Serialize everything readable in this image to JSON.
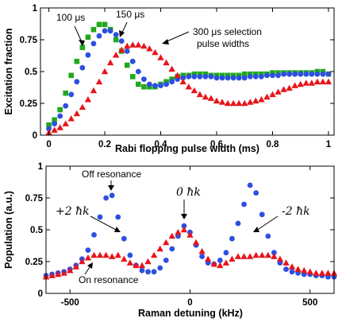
{
  "chart_data": [
    {
      "type": "scatter",
      "xlabel": "Rabi flopping pulse width (ms)",
      "ylabel": "Excitation fraction",
      "xlim": [
        -0.03,
        1.02
      ],
      "ylim": [
        0,
        1
      ],
      "xticks": [
        "0",
        "0.2",
        "0.4",
        "0.6",
        "0.8",
        "1"
      ],
      "yticks": [
        "0",
        "0.25",
        "0.5",
        "0.75",
        "1"
      ],
      "xtick_values": [
        0,
        0.2,
        0.4,
        0.6,
        0.8,
        1.0
      ],
      "ytick_values": [
        0,
        0.25,
        0.5,
        0.75,
        1.0
      ],
      "grid": false,
      "series": [
        {
          "name": "100 μs",
          "color": "#22a81e",
          "marker": "square",
          "x": [
            0.0,
            0.02,
            0.04,
            0.06,
            0.08,
            0.1,
            0.12,
            0.14,
            0.16,
            0.18,
            0.2,
            0.22,
            0.24,
            0.26,
            0.28,
            0.3,
            0.32,
            0.34,
            0.36,
            0.38,
            0.4,
            0.42,
            0.44,
            0.46,
            0.48,
            0.5,
            0.52,
            0.54,
            0.56,
            0.58,
            0.6,
            0.62,
            0.64,
            0.66,
            0.68,
            0.7,
            0.72,
            0.74,
            0.76,
            0.78,
            0.8,
            0.82,
            0.84,
            0.86,
            0.88,
            0.9,
            0.92,
            0.94,
            0.96,
            0.98,
            1.0
          ],
          "y": [
            0.08,
            0.12,
            0.2,
            0.33,
            0.47,
            0.58,
            0.69,
            0.77,
            0.83,
            0.87,
            0.87,
            0.83,
            0.75,
            0.66,
            0.55,
            0.46,
            0.4,
            0.38,
            0.38,
            0.38,
            0.4,
            0.42,
            0.44,
            0.46,
            0.47,
            0.47,
            0.48,
            0.48,
            0.48,
            0.47,
            0.47,
            0.47,
            0.47,
            0.47,
            0.47,
            0.48,
            0.48,
            0.48,
            0.48,
            0.48,
            0.49,
            0.49,
            0.49,
            0.49,
            0.49,
            0.49,
            0.49,
            0.49,
            0.5,
            0.5,
            0.48
          ]
        },
        {
          "name": "150 μs",
          "color": "#2d4fe0",
          "marker": "circle",
          "x": [
            0.0,
            0.02,
            0.04,
            0.06,
            0.08,
            0.1,
            0.12,
            0.14,
            0.16,
            0.18,
            0.2,
            0.22,
            0.24,
            0.26,
            0.28,
            0.3,
            0.32,
            0.34,
            0.36,
            0.38,
            0.4,
            0.42,
            0.44,
            0.46,
            0.48,
            0.5,
            0.52,
            0.54,
            0.56,
            0.58,
            0.6,
            0.62,
            0.64,
            0.66,
            0.68,
            0.7,
            0.72,
            0.74,
            0.76,
            0.78,
            0.8,
            0.82,
            0.84,
            0.86,
            0.88,
            0.9,
            0.92,
            0.94,
            0.96,
            0.98,
            1.0
          ],
          "y": [
            0.05,
            0.09,
            0.15,
            0.23,
            0.32,
            0.42,
            0.53,
            0.63,
            0.72,
            0.78,
            0.82,
            0.82,
            0.79,
            0.74,
            0.66,
            0.58,
            0.5,
            0.44,
            0.4,
            0.39,
            0.39,
            0.4,
            0.42,
            0.44,
            0.45,
            0.46,
            0.46,
            0.46,
            0.46,
            0.46,
            0.45,
            0.45,
            0.45,
            0.45,
            0.45,
            0.45,
            0.46,
            0.46,
            0.46,
            0.47,
            0.47,
            0.47,
            0.48,
            0.48,
            0.48,
            0.48,
            0.48,
            0.48,
            0.48,
            0.48,
            0.48
          ]
        },
        {
          "name": "300 μs selection pulse widths",
          "color": "#e8141a",
          "marker": "triangle",
          "x": [
            0.0,
            0.02,
            0.04,
            0.06,
            0.08,
            0.1,
            0.12,
            0.14,
            0.16,
            0.18,
            0.2,
            0.22,
            0.24,
            0.26,
            0.28,
            0.3,
            0.32,
            0.34,
            0.36,
            0.38,
            0.4,
            0.42,
            0.44,
            0.46,
            0.48,
            0.5,
            0.52,
            0.54,
            0.56,
            0.58,
            0.6,
            0.62,
            0.64,
            0.66,
            0.68,
            0.7,
            0.72,
            0.74,
            0.76,
            0.78,
            0.8,
            0.82,
            0.84,
            0.86,
            0.88,
            0.9,
            0.92,
            0.94,
            0.96,
            0.98,
            1.0
          ],
          "y": [
            0.02,
            0.04,
            0.06,
            0.09,
            0.13,
            0.17,
            0.22,
            0.28,
            0.35,
            0.42,
            0.5,
            0.57,
            0.63,
            0.67,
            0.7,
            0.71,
            0.71,
            0.7,
            0.68,
            0.65,
            0.61,
            0.57,
            0.52,
            0.47,
            0.42,
            0.38,
            0.35,
            0.32,
            0.3,
            0.29,
            0.27,
            0.26,
            0.25,
            0.25,
            0.25,
            0.25,
            0.26,
            0.27,
            0.28,
            0.3,
            0.32,
            0.34,
            0.36,
            0.37,
            0.39,
            0.4,
            0.41,
            0.41,
            0.42,
            0.42,
            0.42
          ]
        }
      ],
      "annotations": [
        "100 μs",
        "150 μs",
        "300 μs selection",
        "pulse widths"
      ]
    },
    {
      "type": "scatter",
      "xlabel": "Raman detuning (kHz)",
      "ylabel": "Population (a.u.)",
      "xlim": [
        -600,
        600
      ],
      "ylim": [
        0,
        1
      ],
      "xticks": [
        "-500",
        "0",
        "500"
      ],
      "yticks": [
        "0",
        "0.25",
        "0.5",
        "0.75",
        "1"
      ],
      "xtick_values": [
        -500,
        0,
        500
      ],
      "ytick_values": [
        0,
        0.25,
        0.5,
        0.75,
        1.0
      ],
      "grid": false,
      "series": [
        {
          "name": "Off resonance",
          "color": "#2d4fe0",
          "marker": "circle",
          "x": [
            -600,
            -575,
            -550,
            -525,
            -500,
            -475,
            -450,
            -425,
            -400,
            -375,
            -350,
            -325,
            -300,
            -275,
            -250,
            -225,
            -200,
            -175,
            -150,
            -125,
            -100,
            -75,
            -50,
            -25,
            0,
            25,
            50,
            75,
            100,
            125,
            150,
            175,
            200,
            225,
            250,
            275,
            300,
            325,
            350,
            375,
            400,
            425,
            450,
            475,
            500,
            525,
            550,
            575,
            600
          ],
          "y": [
            0.14,
            0.15,
            0.16,
            0.17,
            0.19,
            0.22,
            0.27,
            0.34,
            0.46,
            0.6,
            0.75,
            0.77,
            0.6,
            0.43,
            0.3,
            0.22,
            0.18,
            0.17,
            0.17,
            0.2,
            0.26,
            0.35,
            0.45,
            0.53,
            0.48,
            0.38,
            0.29,
            0.24,
            0.23,
            0.26,
            0.32,
            0.43,
            0.55,
            0.7,
            0.85,
            0.79,
            0.62,
            0.45,
            0.32,
            0.24,
            0.19,
            0.17,
            0.16,
            0.15,
            0.15,
            0.14,
            0.14,
            0.13,
            0.13
          ]
        },
        {
          "name": "On resonance",
          "color": "#e8141a",
          "marker": "triangle",
          "x": [
            -600,
            -575,
            -550,
            -525,
            -500,
            -475,
            -450,
            -425,
            -400,
            -375,
            -350,
            -325,
            -300,
            -275,
            -250,
            -225,
            -200,
            -175,
            -150,
            -125,
            -100,
            -75,
            -50,
            -25,
            0,
            25,
            50,
            75,
            100,
            125,
            150,
            175,
            200,
            225,
            250,
            275,
            300,
            325,
            350,
            375,
            400,
            425,
            450,
            475,
            500,
            525,
            550,
            575,
            600
          ],
          "y": [
            0.13,
            0.14,
            0.15,
            0.16,
            0.18,
            0.21,
            0.25,
            0.28,
            0.3,
            0.3,
            0.3,
            0.29,
            0.3,
            0.27,
            0.24,
            0.22,
            0.22,
            0.25,
            0.3,
            0.35,
            0.4,
            0.45,
            0.48,
            0.5,
            0.46,
            0.4,
            0.33,
            0.27,
            0.23,
            0.22,
            0.24,
            0.27,
            0.29,
            0.29,
            0.29,
            0.3,
            0.3,
            0.3,
            0.29,
            0.27,
            0.24,
            0.21,
            0.19,
            0.18,
            0.17,
            0.16,
            0.16,
            0.16,
            0.16
          ]
        }
      ],
      "annotations": [
        "Off resonance",
        "On resonance",
        "+2 ħk",
        "0 ħk",
        "-2 ħk"
      ]
    }
  ]
}
